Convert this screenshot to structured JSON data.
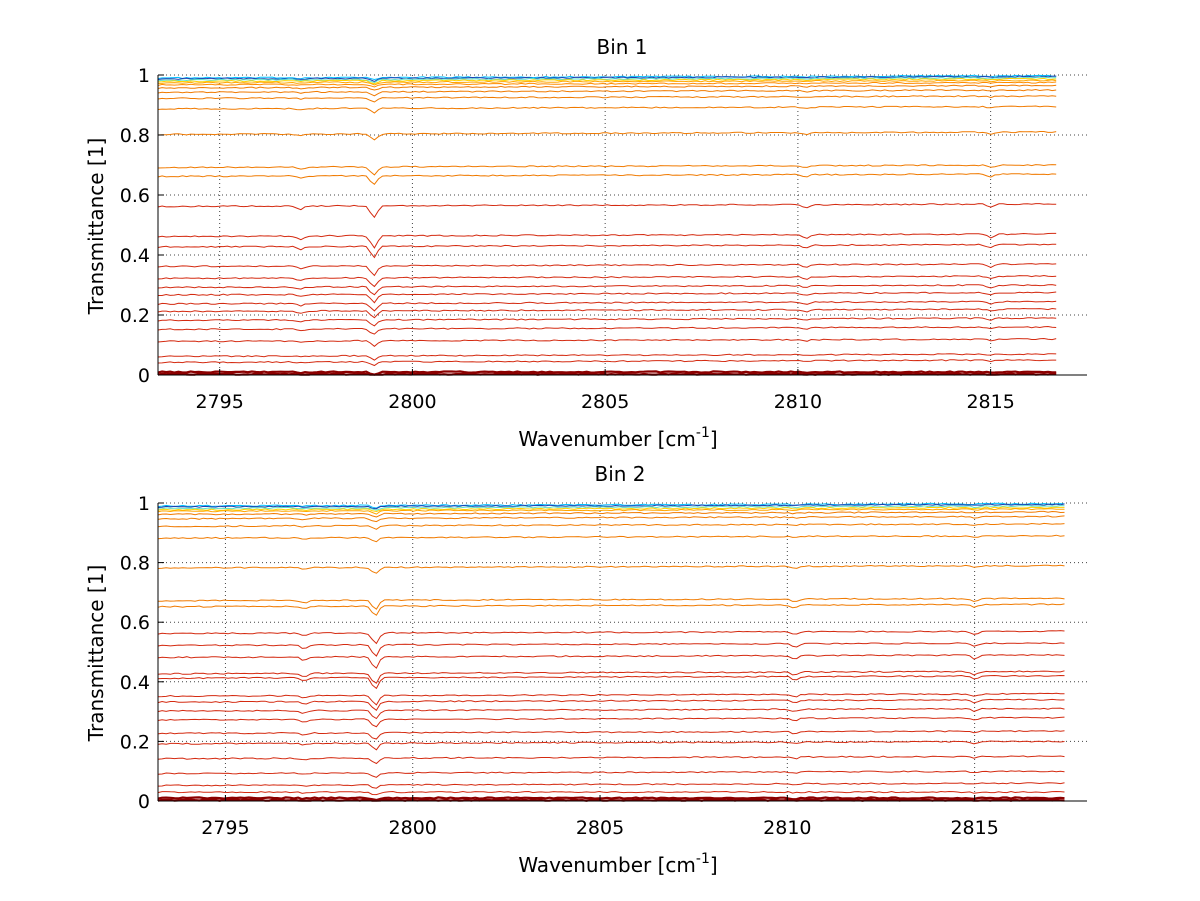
{
  "figure": {
    "background": "#ffffff",
    "line_colors": {
      "top_cluster": [
        "#00bfff",
        "#1f3fb0",
        "#5fe0c8",
        "#ffd200",
        "#ffa500",
        "#ff8c00"
      ],
      "orange": "#f07a00",
      "red": "#d42a10",
      "dark_red": "#8b0000"
    }
  },
  "chart_data": [
    {
      "type": "line",
      "title": "Bin 1",
      "xlabel": "Wavenumber [cm",
      "xlabel_sup": "-1",
      "xlabel_end": "]",
      "ylabel": "Transmittance [1]",
      "xlim": [
        2793.4,
        2817.5
      ],
      "ylim": [
        0,
        1
      ],
      "xticks": [
        2795,
        2800,
        2805,
        2810,
        2815
      ],
      "xtick_labels": [
        "2795",
        "2800",
        "2805",
        "2810",
        "2815"
      ],
      "yticks": [
        0,
        0.2,
        0.4,
        0.6,
        0.8,
        1
      ],
      "ytick_labels": [
        "0",
        "0.2",
        "0.4",
        "0.6",
        "0.8",
        "1"
      ],
      "grid": true,
      "legend": "none",
      "x_end": 2816.7,
      "absorption_lines_cm-1": [
        2797.1,
        2799.0,
        2810.2,
        2815.0
      ],
      "series_baselines": [
        0.998,
        0.995,
        0.991,
        0.987,
        0.982,
        0.975,
        0.965,
        0.95,
        0.93,
        0.895,
        0.81,
        0.7,
        0.67,
        0.57,
        0.47,
        0.435,
        0.37,
        0.33,
        0.3,
        0.275,
        0.245,
        0.22,
        0.19,
        0.16,
        0.12,
        0.07,
        0.05,
        0.01,
        0.003
      ]
    },
    {
      "type": "line",
      "title": "Bin 2",
      "xlabel": "Wavenumber [cm",
      "xlabel_sup": "-1",
      "xlabel_end": "]",
      "ylabel": "Transmittance [1]",
      "xlim": [
        2793.2,
        2818.0
      ],
      "ylim": [
        0,
        1
      ],
      "xticks": [
        2795,
        2800,
        2805,
        2810,
        2815
      ],
      "xtick_labels": [
        "2795",
        "2800",
        "2805",
        "2810",
        "2815"
      ],
      "yticks": [
        0,
        0.2,
        0.4,
        0.6,
        0.8,
        1
      ],
      "ytick_labels": [
        "0",
        "0.2",
        "0.4",
        "0.6",
        "0.8",
        "1"
      ],
      "grid": true,
      "legend": "none",
      "x_end": 2817.4,
      "absorption_lines_cm-1": [
        2797.1,
        2799.0,
        2810.2,
        2815.0
      ],
      "series_baselines": [
        0.998,
        0.995,
        0.99,
        0.985,
        0.98,
        0.97,
        0.955,
        0.93,
        0.89,
        0.79,
        0.68,
        0.66,
        0.57,
        0.53,
        0.49,
        0.435,
        0.42,
        0.36,
        0.34,
        0.31,
        0.28,
        0.235,
        0.2,
        0.15,
        0.1,
        0.06,
        0.03,
        0.01,
        0.003
      ]
    }
  ]
}
